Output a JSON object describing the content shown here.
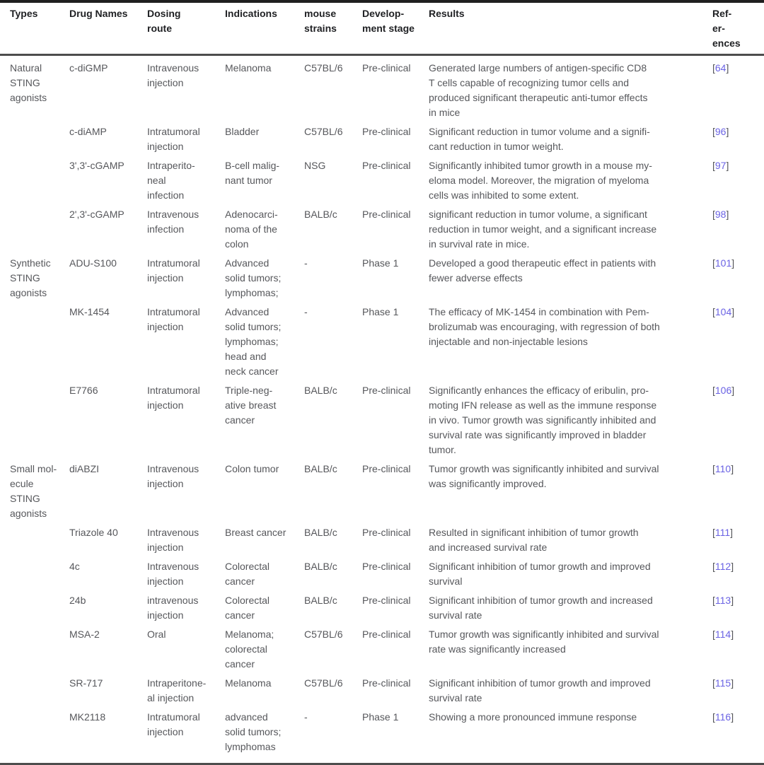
{
  "table": {
    "headers": [
      "Types",
      "Drug Names",
      "Dosing\nroute",
      "Indications",
      "mouse\nstrains",
      "Develop-\nment stage",
      "Results",
      "Ref-\ner-\nences"
    ],
    "rows": [
      {
        "type": "Natural\nSTING\nagonists",
        "drug": "c-diGMP",
        "route": "Intravenous\ninjection",
        "indication": "Melanoma",
        "mouse": "C57BL/6",
        "stage": "Pre-clinical",
        "results": "Generated large numbers of antigen-specific CD8\nT cells capable of recognizing tumor cells and\nproduced significant therapeutic anti-tumor effects\nin mice",
        "ref": "[64]"
      },
      {
        "type": "",
        "drug": "c-diAMP",
        "route": "Intratumoral\ninjection",
        "indication": "Bladder",
        "mouse": "C57BL/6",
        "stage": "Pre-clinical",
        "results": "Significant reduction in tumor volume and a signifi-\ncant reduction in tumor weight.",
        "ref": "[96]"
      },
      {
        "type": "",
        "drug": "3',3'-cGAMP",
        "route": "Intraperito-\nneal\ninfection",
        "indication": "B-cell malig-\nnant tumor",
        "mouse": "NSG",
        "stage": "Pre-clinical",
        "results": "Significantly inhibited tumor growth in a mouse my-\neloma model. Moreover, the migration of myeloma\ncells was inhibited to some extent.",
        "ref": "[97]"
      },
      {
        "type": "",
        "drug": "2',3'-cGAMP",
        "route": "Intravenous\ninfection",
        "indication": "Adenocarci-\nnoma of the\ncolon",
        "mouse": "BALB/c",
        "stage": "Pre-clinical",
        "results": "significant reduction in tumor volume, a significant\nreduction in tumor weight, and a significant increase\nin survival rate in mice.",
        "ref": "[98]"
      },
      {
        "type": "Synthetic\nSTING\nagonists",
        "drug": "ADU-S100",
        "route": "Intratumoral\ninjection",
        "indication": "Advanced\nsolid tumors;\nlymphomas;",
        "mouse": "-",
        "stage": "Phase 1",
        "results": "Developed a good therapeutic effect in patients with\nfewer adverse effects",
        "ref": "[101]"
      },
      {
        "type": "",
        "drug": "MK-1454",
        "route": "Intratumoral\ninjection",
        "indication": "Advanced\nsolid tumors;\nlymphomas;\nhead and\nneck cancer",
        "mouse": "-",
        "stage": "Phase 1",
        "results": "The efficacy of MK-1454 in combination with Pem-\nbrolizumab was encouraging, with regression of both\ninjectable and non-injectable lesions",
        "ref": "[104]"
      },
      {
        "type": "",
        "drug": "E7766",
        "route": "Intratumoral\ninjection",
        "indication": "Triple-neg-\native breast\ncancer",
        "mouse": "BALB/c",
        "stage": "Pre-clinical",
        "results": "Significantly enhances the efficacy of eribulin, pro-\nmoting IFN release as well as the immune response\nin vivo. Tumor growth was significantly inhibited and\nsurvival rate was significantly improved in bladder\ntumor.",
        "ref": "[106]"
      },
      {
        "type": "Small mol-\necule STING\nagonists",
        "drug": "diABZI",
        "route": "Intravenous\ninjection",
        "indication": "Colon tumor",
        "mouse": "BALB/c",
        "stage": "Pre-clinical",
        "results": "Tumor growth was significantly inhibited and survival\nwas significantly improved.",
        "ref": "[110]"
      },
      {
        "type": "",
        "drug": "Triazole 40",
        "route": "Intravenous\ninjection",
        "indication": "Breast cancer",
        "mouse": "BALB/c",
        "stage": "Pre-clinical",
        "results": "Resulted in significant inhibition of tumor growth\nand increased survival rate",
        "ref": "[111]"
      },
      {
        "type": "",
        "drug": "4c",
        "route": "Intravenous\ninjection",
        "indication": "Colorectal\ncancer",
        "mouse": "BALB/c",
        "stage": "Pre-clinical",
        "results": "Significant inhibition of tumor growth and improved\nsurvival",
        "ref": "[112]"
      },
      {
        "type": "",
        "drug": "24b",
        "route": "intravenous\ninjection",
        "indication": "Colorectal\ncancer",
        "mouse": "BALB/c",
        "stage": "Pre-clinical",
        "results": "Significant inhibition of tumor growth and increased\nsurvival rate",
        "ref": "[113]"
      },
      {
        "type": "",
        "drug": "MSA-2",
        "route": "Oral",
        "indication": "Melanoma;\ncolorectal\ncancer",
        "mouse": "C57BL/6",
        "stage": "Pre-clinical",
        "results": "Tumor growth was significantly inhibited and survival\nrate was significantly increased",
        "ref": "[114]"
      },
      {
        "type": "",
        "drug": "SR-717",
        "route": "Intraperitone-\nal injection",
        "indication": "Melanoma",
        "mouse": "C57BL/6",
        "stage": "Pre-clinical",
        "results": "Significant inhibition of tumor growth and improved\nsurvival rate",
        "ref": "[115]"
      },
      {
        "type": "",
        "drug": "MK2118",
        "route": "Intratumoral\ninjection",
        "indication": "advanced\nsolid tumors;\nlymphomas",
        "mouse": "-",
        "stage": "Phase 1",
        "results": "Showing a more pronounced immune response",
        "ref": "[116]"
      }
    ],
    "colors": {
      "header_text": "#1f2023",
      "body_text": "#56575b",
      "reference_number": "#6a62e4",
      "top_rule": "#1f1f1f",
      "mid_rule": "#4d4d4d"
    }
  }
}
